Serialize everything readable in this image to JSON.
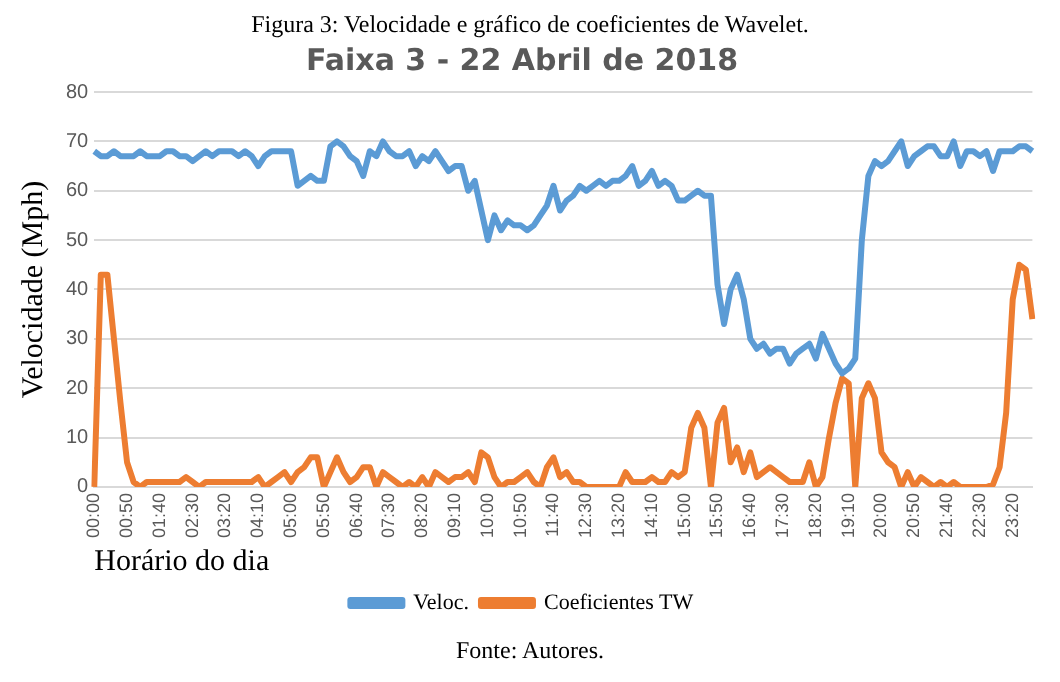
{
  "chart_data": {
    "type": "line",
    "title": "Faixa 3 - 22 Abril de 2018",
    "xlabel": "Horário do dia",
    "ylabel": "Velocidade (Mph)",
    "annotations": [
      "Figura 3:  Velocidade e gráfico de coeficientes de Wavelet.",
      "Fonte: Autores."
    ],
    "categories": [
      "00:00",
      null,
      null,
      null,
      null,
      "00:50",
      null,
      null,
      null,
      null,
      "01:40",
      null,
      null,
      null,
      null,
      "02:30",
      null,
      null,
      null,
      null,
      "03:20",
      null,
      null,
      null,
      null,
      "04:10",
      null,
      null,
      null,
      null,
      "05:00",
      null,
      null,
      null,
      null,
      "05:50",
      null,
      null,
      null,
      null,
      "06:40",
      null,
      null,
      null,
      null,
      "07:30",
      null,
      null,
      null,
      null,
      "08:20",
      null,
      null,
      null,
      null,
      "09:10",
      null,
      null,
      null,
      null,
      "10:00",
      null,
      null,
      null,
      null,
      "10:50",
      null,
      null,
      null,
      null,
      "11:40",
      null,
      null,
      null,
      null,
      "12:30",
      null,
      null,
      null,
      null,
      "13:20",
      null,
      null,
      null,
      null,
      "14:10",
      null,
      null,
      null,
      null,
      "15:00",
      null,
      null,
      null,
      null,
      "15:50",
      null,
      null,
      null,
      null,
      "16:40",
      null,
      null,
      null,
      null,
      "17:30",
      null,
      null,
      null,
      null,
      "18:20",
      null,
      null,
      null,
      null,
      "19:10",
      null,
      null,
      null,
      null,
      "20:00",
      null,
      null,
      null,
      null,
      "20:50",
      null,
      null,
      null,
      null,
      "21:40",
      null,
      null,
      null,
      null,
      "22:30",
      null,
      null,
      null,
      null,
      "23:20",
      null,
      null,
      null
    ],
    "series": [
      {
        "name": "Veloc.",
        "color": "#5b9bd5",
        "values": [
          68,
          67,
          67,
          68,
          67,
          67,
          67,
          68,
          67,
          67,
          67,
          68,
          68,
          67,
          67,
          66,
          67,
          68,
          67,
          68,
          68,
          68,
          67,
          68,
          67,
          65,
          67,
          68,
          68,
          68,
          68,
          61,
          62,
          63,
          62,
          62,
          69,
          70,
          69,
          67,
          66,
          63,
          68,
          67,
          70,
          68,
          67,
          67,
          68,
          65,
          67,
          66,
          68,
          66,
          64,
          65,
          65,
          60,
          62,
          56,
          50,
          55,
          52,
          54,
          53,
          53,
          52,
          53,
          55,
          57,
          61,
          56,
          58,
          59,
          61,
          60,
          61,
          62,
          61,
          62,
          62,
          63,
          65,
          61,
          62,
          64,
          61,
          62,
          61,
          58,
          58,
          59,
          60,
          59,
          59,
          41,
          33,
          40,
          43,
          38,
          30,
          28,
          29,
          27,
          28,
          28,
          25,
          27,
          28,
          29,
          26,
          31,
          28,
          25,
          23,
          24,
          26,
          50,
          63,
          66,
          65,
          66,
          68,
          70,
          65,
          67,
          68,
          69,
          69,
          67,
          67,
          70,
          65,
          68,
          68,
          67,
          68,
          64,
          68,
          68,
          68,
          69,
          69,
          68
        ]
      },
      {
        "name": "Coeficientes TW",
        "color": "#ed7d31",
        "values": [
          0,
          43,
          43,
          30,
          17,
          5,
          1,
          0,
          1,
          1,
          1,
          1,
          1,
          1,
          2,
          1,
          0,
          1,
          1,
          1,
          1,
          1,
          1,
          1,
          1,
          2,
          0,
          1,
          2,
          3,
          1,
          3,
          4,
          6,
          6,
          0,
          3,
          6,
          3,
          1,
          2,
          4,
          4,
          0,
          3,
          2,
          1,
          0,
          1,
          0,
          2,
          0,
          3,
          2,
          1,
          2,
          2,
          3,
          1,
          7,
          6,
          2,
          0,
          1,
          1,
          2,
          3,
          1,
          0,
          4,
          6,
          2,
          3,
          1,
          1,
          0,
          0,
          0,
          0,
          0,
          0,
          3,
          1,
          1,
          1,
          2,
          1,
          1,
          3,
          2,
          3,
          12,
          15,
          12,
          0,
          13,
          16,
          5,
          8,
          3,
          7,
          2,
          3,
          4,
          3,
          2,
          1,
          1,
          1,
          5,
          0,
          2,
          10,
          17,
          22,
          21,
          0,
          18,
          21,
          18,
          7,
          5,
          4,
          0,
          3,
          0,
          2,
          1,
          0,
          1,
          0,
          1,
          0,
          0,
          0,
          0,
          0,
          0.5,
          4,
          15,
          38,
          45,
          44,
          34
        ]
      }
    ],
    "ylim": [
      0,
      80
    ],
    "yticks": [
      0,
      10,
      20,
      30,
      40,
      50,
      60,
      70,
      80
    ],
    "grid": "y",
    "legend": "bottom",
    "marker": "none",
    "line_style": "solid"
  }
}
